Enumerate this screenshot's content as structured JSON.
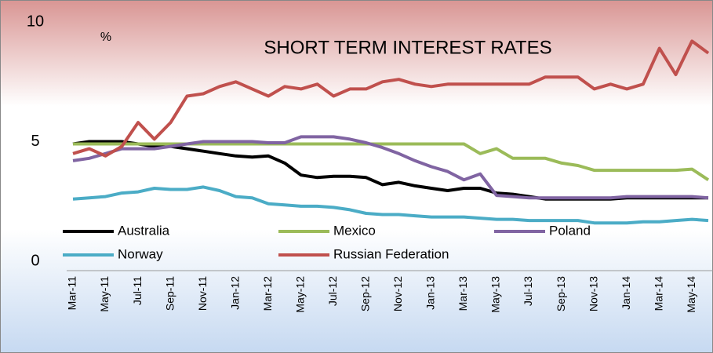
{
  "chart_data": {
    "type": "line",
    "title": "SHORT TERM INTEREST RATES",
    "annotation": "%",
    "categories": [
      "Mar-11",
      null,
      "May-11",
      null,
      "Jul-11",
      null,
      "Sep-11",
      null,
      "Nov-11",
      null,
      "Jan-12",
      null,
      "Mar-12",
      null,
      "May-12",
      null,
      "Jul-12",
      null,
      "Sep-12",
      null,
      "Nov-12",
      null,
      "Jan-13",
      null,
      "Mar-13",
      null,
      "May-13",
      null,
      "Jul-13",
      null,
      "Sep-13",
      null,
      "Nov-13",
      null,
      "Jan-14",
      null,
      "Mar-14",
      null,
      "May-14",
      null
    ],
    "series": [
      {
        "name": "Australia",
        "color": "#000000",
        "values": [
          4.9,
          5.0,
          5.0,
          5.0,
          4.9,
          4.8,
          4.8,
          4.7,
          4.6,
          4.5,
          4.4,
          4.35,
          4.4,
          4.1,
          3.6,
          3.5,
          3.55,
          3.55,
          3.5,
          3.2,
          3.3,
          3.15,
          3.05,
          2.95,
          3.05,
          3.05,
          2.85,
          2.8,
          2.7,
          2.6,
          2.6,
          2.6,
          2.6,
          2.6,
          2.65,
          2.65,
          2.65,
          2.65,
          2.65,
          2.65
        ]
      },
      {
        "name": "Mexico",
        "color": "#9bbb59",
        "values": [
          4.9,
          4.9,
          4.9,
          4.9,
          4.9,
          4.9,
          4.9,
          4.9,
          4.9,
          4.9,
          4.9,
          4.9,
          4.9,
          4.9,
          4.9,
          4.9,
          4.9,
          4.9,
          4.9,
          4.9,
          4.9,
          4.9,
          4.9,
          4.9,
          4.9,
          4.5,
          4.7,
          4.3,
          4.3,
          4.3,
          4.1,
          4.0,
          3.8,
          3.8,
          3.8,
          3.8,
          3.8,
          3.8,
          3.85,
          3.4
        ]
      },
      {
        "name": "Poland",
        "color": "#8064a2",
        "values": [
          4.2,
          4.3,
          4.5,
          4.7,
          4.7,
          4.7,
          4.8,
          4.9,
          5.0,
          5.0,
          5.0,
          5.0,
          4.95,
          4.95,
          5.2,
          5.2,
          5.2,
          5.1,
          4.95,
          4.75,
          4.5,
          4.2,
          3.95,
          3.75,
          3.4,
          3.65,
          2.75,
          2.7,
          2.65,
          2.65,
          2.65,
          2.65,
          2.65,
          2.65,
          2.7,
          2.7,
          2.7,
          2.7,
          2.7,
          2.65
        ]
      },
      {
        "name": "Norway",
        "color": "#4bacc6",
        "values": [
          2.6,
          2.65,
          2.7,
          2.85,
          2.9,
          3.05,
          3.0,
          3.0,
          3.1,
          2.95,
          2.7,
          2.65,
          2.4,
          2.35,
          2.3,
          2.3,
          2.25,
          2.15,
          2.0,
          1.95,
          1.95,
          1.9,
          1.85,
          1.85,
          1.85,
          1.8,
          1.75,
          1.75,
          1.7,
          1.7,
          1.7,
          1.7,
          1.6,
          1.6,
          1.6,
          1.65,
          1.65,
          1.7,
          1.75,
          1.7
        ]
      },
      {
        "name": "Russian Federation",
        "color": "#c0504d",
        "values": [
          4.5,
          4.7,
          4.4,
          4.8,
          5.8,
          5.1,
          5.8,
          6.9,
          7.0,
          7.3,
          7.5,
          7.2,
          6.9,
          7.3,
          7.2,
          7.4,
          6.9,
          7.2,
          7.2,
          7.5,
          7.6,
          7.4,
          7.3,
          7.4,
          7.4,
          7.4,
          7.4,
          7.4,
          7.4,
          7.7,
          7.7,
          7.7,
          7.2,
          7.4,
          7.2,
          7.4,
          8.9,
          7.8,
          9.2,
          8.7
        ]
      }
    ],
    "ylim": [
      0,
      10
    ],
    "yticks": [
      0,
      5,
      10
    ]
  }
}
